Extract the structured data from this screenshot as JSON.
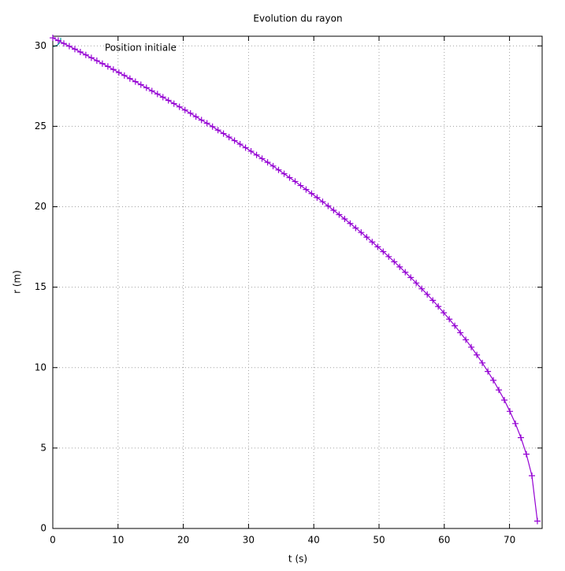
{
  "chart_data": {
    "type": "line",
    "title": "Evolution du rayon",
    "xlabel": "t (s)",
    "ylabel": "r (m)",
    "annotation": "Position initiale",
    "xlim": [
      0,
      75
    ],
    "ylim": [
      0,
      30.6
    ],
    "xticks": [
      0,
      10,
      20,
      30,
      40,
      50,
      60,
      70
    ],
    "yticks": [
      0,
      5,
      10,
      15,
      20,
      25,
      30
    ],
    "grid": true,
    "markers": true,
    "x": [
      0,
      0.84,
      1.69,
      2.53,
      3.38,
      4.22,
      5.06,
      5.91,
      6.75,
      7.6,
      8.44,
      9.28,
      10.13,
      10.97,
      11.82,
      12.66,
      13.5,
      14.35,
      15.19,
      16.04,
      16.88,
      17.72,
      18.57,
      19.41,
      20.26,
      21.1,
      21.94,
      22.79,
      23.63,
      24.48,
      25.32,
      26.16,
      27.01,
      27.85,
      28.7,
      29.54,
      30.38,
      31.23,
      32.07,
      32.92,
      33.76,
      34.6,
      35.45,
      36.29,
      37.14,
      37.98,
      38.82,
      39.67,
      40.51,
      41.36,
      42.2,
      43.04,
      43.89,
      44.73,
      45.58,
      46.42,
      47.26,
      48.11,
      48.95,
      49.8,
      50.64,
      51.48,
      52.33,
      53.17,
      54.02,
      54.86,
      55.7,
      56.55,
      57.39,
      58.24,
      59.08,
      59.92,
      60.77,
      61.61,
      62.46,
      63.3,
      64.14,
      64.99,
      65.83,
      66.68,
      67.52,
      68.36,
      69.21,
      70.05,
      70.9,
      71.74,
      72.58,
      73.43,
      74.27
    ],
    "series": [
      {
        "color": "#9400d3",
        "values": [
          30.5,
          30.33,
          30.15,
          29.98,
          29.8,
          29.62,
          29.44,
          29.26,
          29.08,
          28.9,
          28.72,
          28.53,
          28.34,
          28.16,
          27.97,
          27.78,
          27.59,
          27.4,
          27.2,
          27.01,
          26.81,
          26.61,
          26.41,
          26.21,
          26.01,
          25.81,
          25.6,
          25.39,
          25.19,
          24.98,
          24.76,
          24.55,
          24.33,
          24.11,
          23.89,
          23.67,
          23.45,
          23.22,
          22.99,
          22.76,
          22.53,
          22.29,
          22.05,
          21.81,
          21.57,
          21.32,
          21.07,
          20.82,
          20.57,
          20.31,
          20.05,
          19.78,
          19.51,
          19.24,
          18.96,
          18.68,
          18.4,
          18.11,
          17.81,
          17.51,
          17.21,
          16.9,
          16.58,
          16.26,
          15.93,
          15.6,
          15.26,
          14.9,
          14.55,
          14.18,
          13.8,
          13.41,
          13.01,
          12.6,
          12.17,
          11.73,
          11.27,
          10.79,
          10.29,
          9.76,
          9.21,
          8.61,
          7.98,
          7.28,
          6.52,
          5.65,
          4.62,
          3.28,
          0.46
        ]
      }
    ]
  }
}
